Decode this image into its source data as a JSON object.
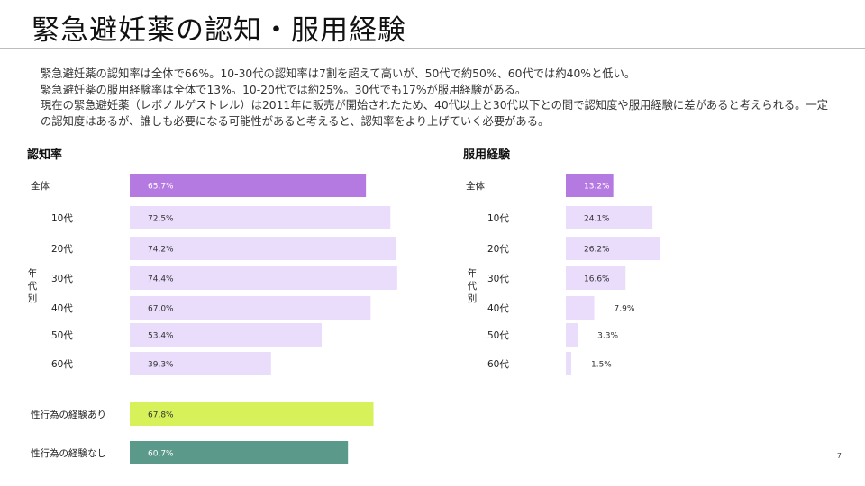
{
  "page": {
    "title": "緊急避妊薬の認知・服用経験",
    "summary": [
      "緊急避妊薬の認知率は全体で66%。10-30代の認知率は7割を超えて高いが、50代で約50%、60代では約40%と低い。",
      "緊急避妊薬の服用経験率は全体で13%。10-20代では約25%。30代でも17%が服用経験がある。",
      "現在の緊急避妊薬（レボノルゲストレル）は2011年に販売が開始されたため、40代以上と30代以下との間で認知度や服用経験に差があると考えられる。一定の認知度はあるが、誰しも必要になる可能性があると考えると、認知率をより上げていく必要がある。"
    ],
    "page_number": "7"
  },
  "chart_data": [
    {
      "type": "bar",
      "orientation": "horizontal",
      "title": "認知率",
      "group_label": "年代別",
      "categories": [
        "全体",
        "10代",
        "20代",
        "30代",
        "40代",
        "50代",
        "60代",
        "性行為の経験あり",
        "性行為の経験なし"
      ],
      "values": [
        65.7,
        72.5,
        74.2,
        74.4,
        67.0,
        53.4,
        39.3,
        67.8,
        60.7
      ],
      "value_labels": [
        "65.7%",
        "72.5%",
        "74.2%",
        "74.4%",
        "67.0%",
        "53.4%",
        "39.3%",
        "67.8%",
        "60.7%"
      ],
      "bar_colors": [
        "#b57ae2",
        "#eadcfb",
        "#eadcfb",
        "#eadcfb",
        "#eadcfb",
        "#eadcfb",
        "#eadcfb",
        "#d6f15a",
        "#5b9a8b"
      ],
      "label_colors": [
        "#ffffff",
        "#333333",
        "#333333",
        "#333333",
        "#333333",
        "#333333",
        "#333333",
        "#333333",
        "#ffffff"
      ],
      "xlim": [
        0,
        100
      ],
      "grid": false,
      "legend": "none"
    },
    {
      "type": "bar",
      "orientation": "horizontal",
      "title": "服用経験",
      "group_label": "年代別",
      "categories": [
        "全体",
        "10代",
        "20代",
        "30代",
        "40代",
        "50代",
        "60代"
      ],
      "values": [
        13.2,
        24.1,
        26.2,
        16.6,
        7.9,
        3.3,
        1.5
      ],
      "value_labels": [
        "13.2%",
        "24.1%",
        "26.2%",
        "16.6%",
        "7.9%",
        "3.3%",
        "1.5%"
      ],
      "bar_colors": [
        "#b57ae2",
        "#eadcfb",
        "#eadcfb",
        "#eadcfb",
        "#eadcfb",
        "#eadcfb",
        "#eadcfb"
      ],
      "label_colors": [
        "#ffffff",
        "#333333",
        "#333333",
        "#333333",
        "#333333",
        "#333333",
        "#333333"
      ],
      "xlim": [
        0,
        100
      ],
      "grid": false,
      "legend": "none"
    }
  ]
}
